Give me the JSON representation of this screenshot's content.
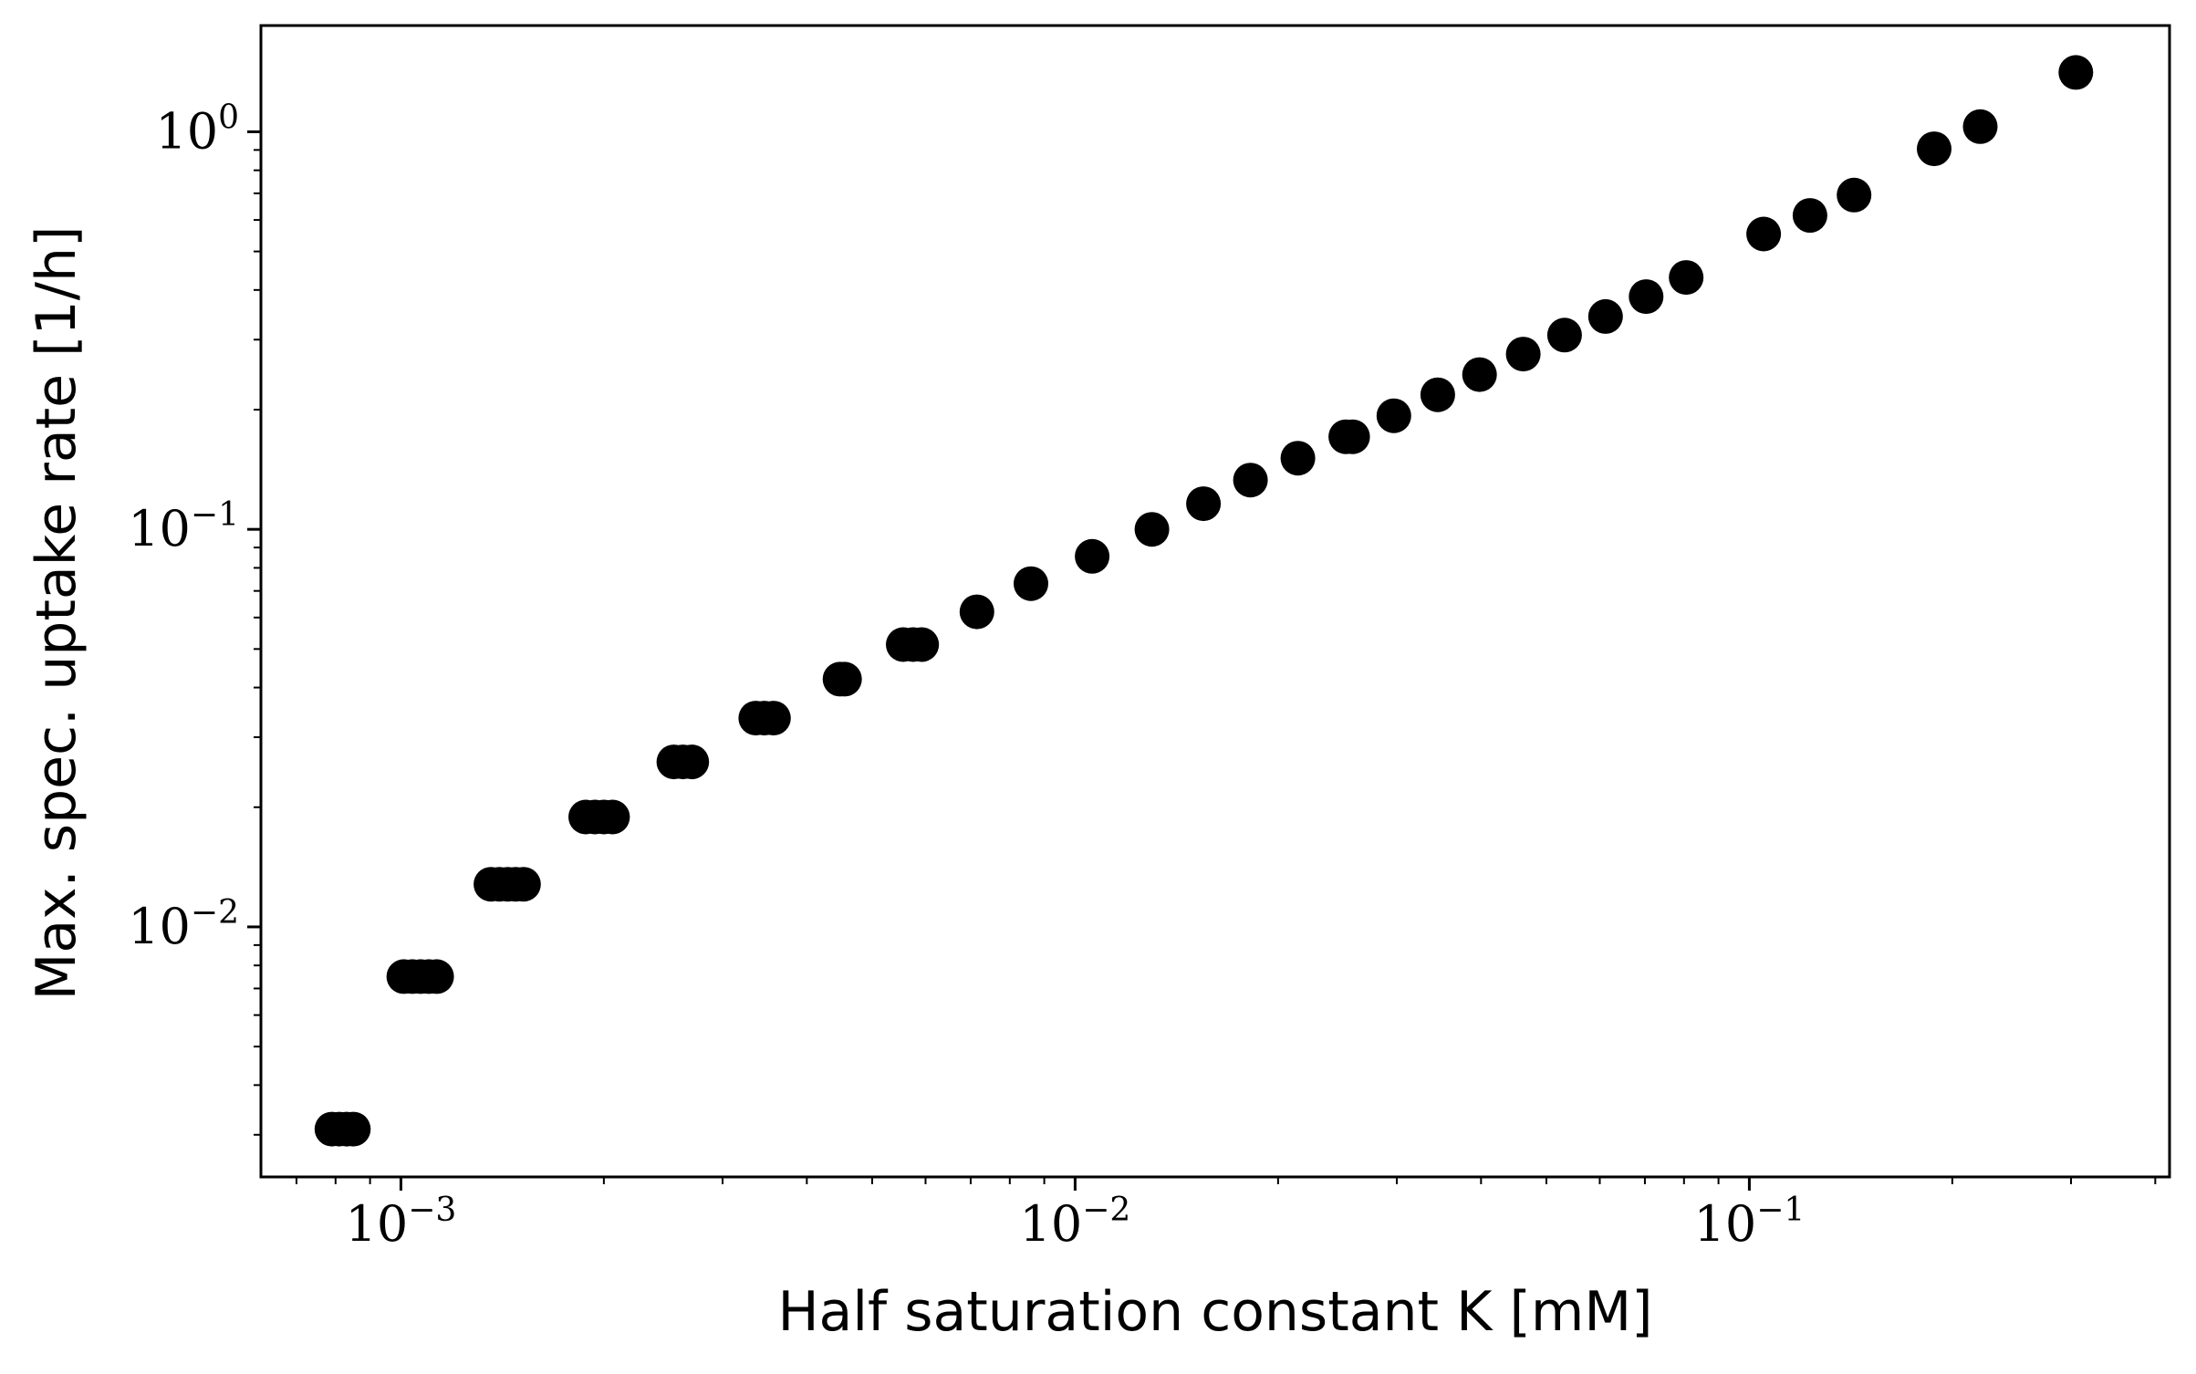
{
  "chart_data": {
    "type": "scatter",
    "title": "",
    "xlabel": "Half saturation constant K [mM]",
    "ylabel": "Max. spec. uptake rate [1/h]",
    "xscale": "log",
    "yscale": "log",
    "xlim": [
      0.00062,
      0.42
    ],
    "ylim": [
      0.00235,
      1.85
    ],
    "grid": false,
    "legend": "none",
    "marker_color": "#000000",
    "x_ticks": [
      {
        "value": 0.001,
        "base": "10",
        "exp": "−3"
      },
      {
        "value": 0.01,
        "base": "10",
        "exp": "−2"
      },
      {
        "value": 0.1,
        "base": "10",
        "exp": "−1"
      }
    ],
    "y_ticks": [
      {
        "value": 0.01,
        "base": "10",
        "exp": "−2"
      },
      {
        "value": 0.1,
        "base": "10",
        "exp": "−1"
      },
      {
        "value": 1,
        "base": "10",
        "exp": "0"
      }
    ],
    "points": [
      {
        "x": 0.00079,
        "y": 0.0031
      },
      {
        "x": 0.00081,
        "y": 0.0031
      },
      {
        "x": 0.00083,
        "y": 0.0031
      },
      {
        "x": 0.00085,
        "y": 0.0031
      },
      {
        "x": 0.00101,
        "y": 0.0075
      },
      {
        "x": 0.00104,
        "y": 0.0075
      },
      {
        "x": 0.00107,
        "y": 0.0075
      },
      {
        "x": 0.0011,
        "y": 0.0075
      },
      {
        "x": 0.00113,
        "y": 0.0075
      },
      {
        "x": 0.00136,
        "y": 0.0128
      },
      {
        "x": 0.0014,
        "y": 0.0128
      },
      {
        "x": 0.00144,
        "y": 0.0128
      },
      {
        "x": 0.00148,
        "y": 0.0128
      },
      {
        "x": 0.00152,
        "y": 0.0128
      },
      {
        "x": 0.00188,
        "y": 0.0189
      },
      {
        "x": 0.00194,
        "y": 0.0189
      },
      {
        "x": 0.002,
        "y": 0.0189
      },
      {
        "x": 0.00206,
        "y": 0.0189
      },
      {
        "x": 0.00254,
        "y": 0.026
      },
      {
        "x": 0.00262,
        "y": 0.026
      },
      {
        "x": 0.0027,
        "y": 0.026
      },
      {
        "x": 0.00336,
        "y": 0.0335
      },
      {
        "x": 0.00346,
        "y": 0.0335
      },
      {
        "x": 0.00357,
        "y": 0.0335
      },
      {
        "x": 0.00448,
        "y": 0.042
      },
      {
        "x": 0.00455,
        "y": 0.042
      },
      {
        "x": 0.00556,
        "y": 0.0513
      },
      {
        "x": 0.00575,
        "y": 0.0513
      },
      {
        "x": 0.00592,
        "y": 0.0513
      },
      {
        "x": 0.00715,
        "y": 0.062
      },
      {
        "x": 0.0086,
        "y": 0.073
      },
      {
        "x": 0.0106,
        "y": 0.0855
      },
      {
        "x": 0.013,
        "y": 0.1
      },
      {
        "x": 0.0155,
        "y": 0.116
      },
      {
        "x": 0.0182,
        "y": 0.133
      },
      {
        "x": 0.0214,
        "y": 0.151
      },
      {
        "x": 0.0252,
        "y": 0.171
      },
      {
        "x": 0.0258,
        "y": 0.171
      },
      {
        "x": 0.0297,
        "y": 0.193
      },
      {
        "x": 0.0345,
        "y": 0.218
      },
      {
        "x": 0.0398,
        "y": 0.245
      },
      {
        "x": 0.0462,
        "y": 0.276
      },
      {
        "x": 0.0532,
        "y": 0.308
      },
      {
        "x": 0.0612,
        "y": 0.343
      },
      {
        "x": 0.0703,
        "y": 0.385
      },
      {
        "x": 0.0806,
        "y": 0.43
      },
      {
        "x": 0.105,
        "y": 0.553
      },
      {
        "x": 0.123,
        "y": 0.616
      },
      {
        "x": 0.143,
        "y": 0.693
      },
      {
        "x": 0.188,
        "y": 0.906
      },
      {
        "x": 0.22,
        "y": 1.03
      },
      {
        "x": 0.305,
        "y": 1.41
      }
    ]
  }
}
